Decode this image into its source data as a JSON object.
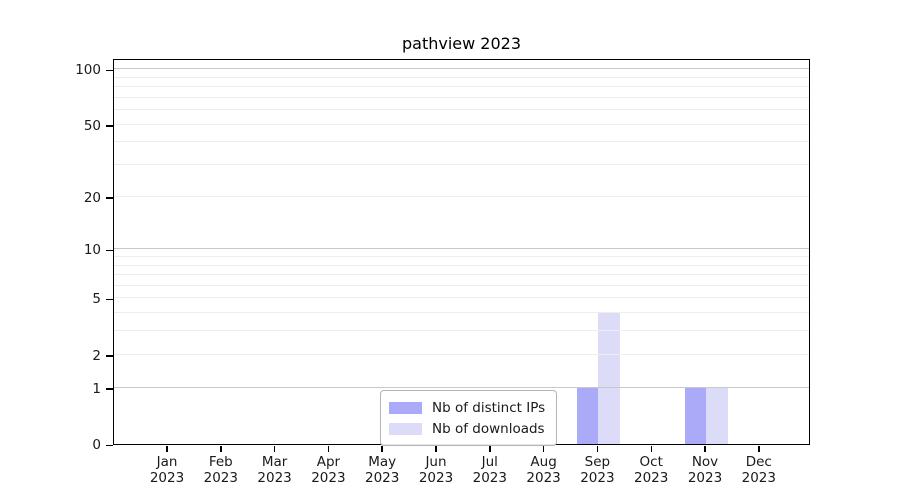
{
  "chart_data": {
    "type": "bar",
    "title": "pathview 2023",
    "categories": [
      "Jan",
      "Feb",
      "Mar",
      "Apr",
      "May",
      "Jun",
      "Jul",
      "Aug",
      "Sep",
      "Oct",
      "Nov",
      "Dec"
    ],
    "year": "2023",
    "series": [
      {
        "name": "Nb of distinct IPs",
        "color": "#aaaaf8",
        "values": [
          0,
          0,
          0,
          0,
          0,
          0,
          0,
          0,
          1,
          0,
          1,
          0
        ]
      },
      {
        "name": "Nb of downloads",
        "color": "#dcdcf8",
        "values": [
          0,
          0,
          0,
          0,
          0,
          0,
          0,
          0,
          4,
          0,
          1,
          0
        ]
      }
    ],
    "y_scale": "log1p",
    "ylim": [
      0,
      115
    ],
    "y_ticks": [
      0,
      1,
      2,
      5,
      10,
      20,
      50,
      100
    ],
    "gridlines": {
      "major": [
        1,
        10,
        100
      ],
      "minor": [
        2,
        3,
        4,
        5,
        6,
        7,
        8,
        9,
        20,
        30,
        40,
        50,
        60,
        70,
        80,
        90
      ]
    },
    "grid_major_color": "#c8c8c8",
    "grid_minor_color": "#ededed",
    "legend_position": "inside lower center",
    "xlabel": "",
    "ylabel": ""
  }
}
